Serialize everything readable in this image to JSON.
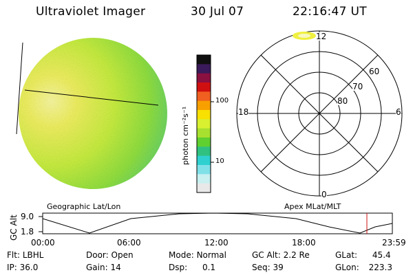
{
  "header": {
    "title": "Ultraviolet Imager",
    "date": "30 Jul 07",
    "time": "22:16:47 UT"
  },
  "colorbar": {
    "unit_label": "photon cm⁻²s⁻¹",
    "ticks": [
      "100",
      "10"
    ],
    "colors": [
      "#101010",
      "#3a1a5a",
      "#8a1040",
      "#d01010",
      "#f06020",
      "#f8a000",
      "#f8e000",
      "#d8f030",
      "#a8e030",
      "#60d030",
      "#30c080",
      "#30d0d0",
      "#80e0e8",
      "#c8f0f0",
      "#e8e8e8"
    ]
  },
  "polar": {
    "mlt_labels": {
      "top": "12",
      "left": "18",
      "right": "6",
      "bottom": "0"
    },
    "lat_labels": [
      "60",
      "70",
      "80"
    ],
    "projection_label": "Apex MLat/MLT"
  },
  "globe": {
    "projection_label": "Geographic Lat/Lon",
    "colors": {
      "bright": "#f0f060",
      "mid": "#c8ee40",
      "dim": "#60d060",
      "edge": "#40c8c0"
    }
  },
  "orbit": {
    "axis_title": "GC Alt",
    "y_ticks": [
      "9.0",
      "1.8"
    ],
    "x_ticks": [
      "00:00",
      "06:00",
      "12:00",
      "18:00",
      "23:59"
    ],
    "marker_color": "#d01010"
  },
  "info": {
    "filter": {
      "label": "Flt:",
      "value": "LBHL"
    },
    "ip": {
      "label": "IP:",
      "value": "36.0"
    },
    "door": {
      "label": "Door:",
      "value": "Open"
    },
    "gain": {
      "label": "Gain:",
      "value": "14"
    },
    "mode": {
      "label": "Mode:",
      "value": "Normal"
    },
    "dsp": {
      "label": "Dsp:",
      "value": "0.1"
    },
    "gc_alt": {
      "label": "GC Alt:",
      "value": "2.2 Re"
    },
    "seq": {
      "label": "Seq:",
      "value": "39"
    },
    "glat": {
      "label": "GLat:",
      "value": "45.4"
    },
    "glon": {
      "label": "GLon:",
      "value": "223.3"
    }
  }
}
